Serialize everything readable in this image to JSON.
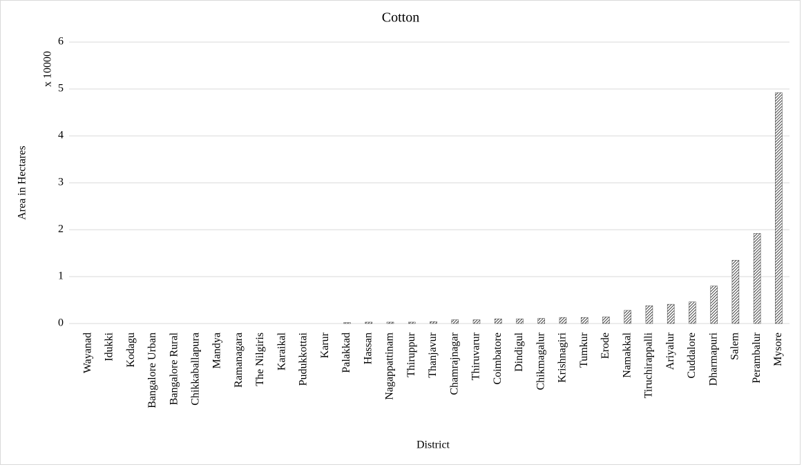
{
  "chart_data": {
    "type": "bar",
    "title": "Cotton",
    "x_label": "District",
    "y_label": "Area in Hectares",
    "y_unit_label": "x 10000",
    "categories": [
      "Wayanad",
      "Idukki",
      "Kodagu",
      "Bangalore Urban",
      "Bangalore Rural",
      "Chikkaballapura",
      "Mandya",
      "Ramanagara",
      "The Nilgiris",
      "Karaikal",
      "Pudukkottai",
      "Karur",
      "Palakkad",
      "Hassan",
      "Nagappattinam",
      "Thiruppur",
      "Thanjavur",
      "Chamrajnagar",
      "Thiruvarur",
      "Coimbatore",
      "Dindigul",
      "Chikmagalur",
      "Krishnagiri",
      "Tumkur",
      "Erode",
      "Namakkal",
      "Tiruchirappalli",
      "Ariyalur",
      "Cuddalore",
      "Dharmapuri",
      "Salem",
      "Perambalur",
      "Mysore"
    ],
    "values": [
      0,
      0,
      0,
      0,
      0,
      0,
      0,
      0,
      0,
      0,
      0,
      0,
      0.02,
      0.03,
      0.03,
      0.03,
      0.04,
      0.08,
      0.08,
      0.1,
      0.1,
      0.11,
      0.13,
      0.13,
      0.14,
      0.28,
      0.38,
      0.41,
      0.46,
      0.8,
      1.35,
      1.92,
      4.92
    ],
    "color": "#404040",
    "ylim": [
      0,
      6
    ],
    "yticks": [
      0,
      1,
      2,
      3,
      4,
      5,
      6
    ],
    "grid": true
  }
}
